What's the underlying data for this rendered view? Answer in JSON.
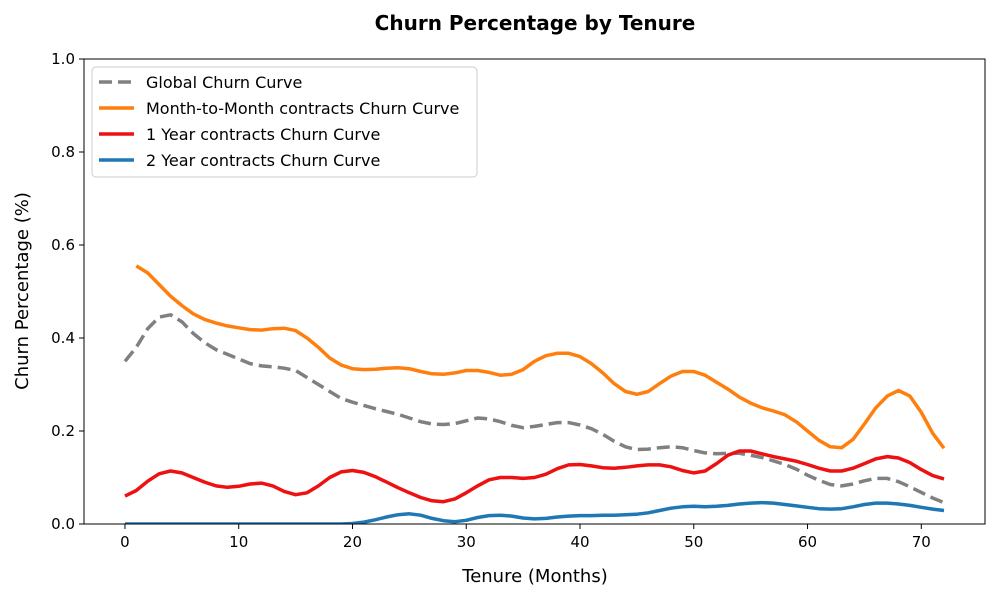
{
  "chart_data": {
    "type": "line",
    "title": "Churn Percentage by Tenure",
    "xlabel": "Tenure (Months)",
    "ylabel": "Churn Percentage (%)",
    "xlim": [
      -3.6,
      75.6
    ],
    "ylim": [
      0,
      1.0
    ],
    "xticks": [
      0,
      10,
      20,
      30,
      40,
      50,
      60,
      70
    ],
    "yticks": [
      0.0,
      0.2,
      0.4,
      0.6,
      0.8,
      1.0
    ],
    "xtick_labels": [
      "0",
      "10",
      "20",
      "30",
      "40",
      "50",
      "60",
      "70"
    ],
    "ytick_labels": [
      "0.0",
      "0.2",
      "0.4",
      "0.6",
      "0.8",
      "1.0"
    ],
    "grid": false,
    "legend_position": "top-left",
    "series": [
      {
        "name": "Global Churn Curve",
        "color": "#808080",
        "dash": true,
        "x": [
          0,
          1,
          2,
          3,
          4,
          5,
          6,
          7,
          8,
          9,
          10,
          11,
          12,
          13,
          14,
          15,
          16,
          17,
          18,
          19,
          20,
          21,
          22,
          23,
          24,
          25,
          26,
          27,
          28,
          29,
          30,
          31,
          32,
          33,
          34,
          35,
          36,
          37,
          38,
          39,
          40,
          41,
          42,
          43,
          44,
          45,
          46,
          47,
          48,
          49,
          50,
          51,
          52,
          53,
          54,
          55,
          56,
          57,
          58,
          59,
          60,
          61,
          62,
          63,
          64,
          65,
          66,
          67,
          68,
          69,
          70,
          71,
          72
        ],
        "values": [
          0.35,
          0.38,
          0.42,
          0.445,
          0.45,
          0.435,
          0.41,
          0.39,
          0.375,
          0.365,
          0.355,
          0.345,
          0.34,
          0.338,
          0.335,
          0.33,
          0.315,
          0.3,
          0.285,
          0.27,
          0.262,
          0.255,
          0.248,
          0.242,
          0.236,
          0.228,
          0.22,
          0.215,
          0.214,
          0.216,
          0.222,
          0.228,
          0.226,
          0.22,
          0.212,
          0.207,
          0.21,
          0.214,
          0.218,
          0.218,
          0.213,
          0.205,
          0.193,
          0.178,
          0.166,
          0.16,
          0.161,
          0.164,
          0.166,
          0.164,
          0.158,
          0.153,
          0.151,
          0.152,
          0.152,
          0.148,
          0.143,
          0.136,
          0.128,
          0.118,
          0.105,
          0.094,
          0.085,
          0.082,
          0.086,
          0.093,
          0.098,
          0.098,
          0.091,
          0.08,
          0.068,
          0.056,
          0.046
        ]
      },
      {
        "name": "Month-to-Month contracts Churn Curve",
        "color": "#ff7f0e",
        "dash": false,
        "x": [
          1,
          2,
          3,
          4,
          5,
          6,
          7,
          8,
          9,
          10,
          11,
          12,
          13,
          14,
          15,
          16,
          17,
          18,
          19,
          20,
          21,
          22,
          23,
          24,
          25,
          26,
          27,
          28,
          29,
          30,
          31,
          32,
          33,
          34,
          35,
          36,
          37,
          38,
          39,
          40,
          41,
          42,
          43,
          44,
          45,
          46,
          47,
          48,
          49,
          50,
          51,
          52,
          53,
          54,
          55,
          56,
          57,
          58,
          59,
          60,
          61,
          62,
          63,
          64,
          65,
          66,
          67,
          68,
          69,
          70,
          71,
          72
        ],
        "values": [
          0.555,
          0.54,
          0.515,
          0.49,
          0.47,
          0.452,
          0.44,
          0.432,
          0.426,
          0.422,
          0.418,
          0.417,
          0.42,
          0.421,
          0.416,
          0.4,
          0.38,
          0.357,
          0.342,
          0.334,
          0.332,
          0.333,
          0.335,
          0.336,
          0.334,
          0.328,
          0.323,
          0.322,
          0.325,
          0.33,
          0.33,
          0.326,
          0.32,
          0.322,
          0.332,
          0.35,
          0.362,
          0.367,
          0.367,
          0.36,
          0.345,
          0.325,
          0.302,
          0.285,
          0.279,
          0.285,
          0.302,
          0.318,
          0.328,
          0.328,
          0.32,
          0.305,
          0.29,
          0.273,
          0.26,
          0.25,
          0.243,
          0.235,
          0.22,
          0.2,
          0.18,
          0.166,
          0.164,
          0.182,
          0.215,
          0.25,
          0.275,
          0.287,
          0.275,
          0.24,
          0.195,
          0.163
        ]
      },
      {
        "name": "1 Year contracts Churn Curve",
        "color": "#ee1111",
        "dash": false,
        "x": [
          0,
          1,
          2,
          3,
          4,
          5,
          6,
          7,
          8,
          9,
          10,
          11,
          12,
          13,
          14,
          15,
          16,
          17,
          18,
          19,
          20,
          21,
          22,
          23,
          24,
          25,
          26,
          27,
          28,
          29,
          30,
          31,
          32,
          33,
          34,
          35,
          36,
          37,
          38,
          39,
          40,
          41,
          42,
          43,
          44,
          45,
          46,
          47,
          48,
          49,
          50,
          51,
          52,
          53,
          54,
          55,
          56,
          57,
          58,
          59,
          60,
          61,
          62,
          63,
          64,
          65,
          66,
          67,
          68,
          69,
          70,
          71,
          72
        ],
        "values": [
          0.06,
          0.072,
          0.092,
          0.108,
          0.114,
          0.11,
          0.1,
          0.09,
          0.082,
          0.079,
          0.081,
          0.086,
          0.088,
          0.082,
          0.07,
          0.063,
          0.067,
          0.082,
          0.1,
          0.112,
          0.115,
          0.111,
          0.102,
          0.09,
          0.078,
          0.067,
          0.057,
          0.05,
          0.048,
          0.054,
          0.067,
          0.082,
          0.095,
          0.1,
          0.1,
          0.098,
          0.1,
          0.107,
          0.119,
          0.127,
          0.128,
          0.125,
          0.121,
          0.12,
          0.122,
          0.125,
          0.127,
          0.127,
          0.123,
          0.115,
          0.11,
          0.114,
          0.13,
          0.148,
          0.157,
          0.157,
          0.151,
          0.145,
          0.14,
          0.135,
          0.128,
          0.12,
          0.114,
          0.114,
          0.12,
          0.13,
          0.14,
          0.145,
          0.142,
          0.132,
          0.117,
          0.104,
          0.097
        ]
      },
      {
        "name": "2 Year contracts Churn Curve",
        "color": "#1f77b4",
        "dash": false,
        "x": [
          0,
          1,
          2,
          3,
          4,
          5,
          6,
          7,
          8,
          9,
          10,
          11,
          12,
          13,
          14,
          15,
          16,
          17,
          18,
          19,
          20,
          21,
          22,
          23,
          24,
          25,
          26,
          27,
          28,
          29,
          30,
          31,
          32,
          33,
          34,
          35,
          36,
          37,
          38,
          39,
          40,
          41,
          42,
          43,
          44,
          45,
          46,
          47,
          48,
          49,
          50,
          51,
          52,
          53,
          54,
          55,
          56,
          57,
          58,
          59,
          60,
          61,
          62,
          63,
          64,
          65,
          66,
          67,
          68,
          69,
          70,
          71,
          72
        ],
        "values": [
          0,
          0,
          0,
          0,
          0,
          0,
          0,
          0,
          0,
          0,
          0,
          0,
          0,
          0,
          0,
          0,
          0,
          0,
          0,
          0,
          0.001,
          0.004,
          0.009,
          0.015,
          0.02,
          0.022,
          0.019,
          0.012,
          0.007,
          0.005,
          0.008,
          0.014,
          0.018,
          0.019,
          0.017,
          0.013,
          0.011,
          0.012,
          0.015,
          0.017,
          0.018,
          0.018,
          0.019,
          0.019,
          0.02,
          0.021,
          0.024,
          0.029,
          0.034,
          0.037,
          0.038,
          0.037,
          0.038,
          0.04,
          0.043,
          0.045,
          0.046,
          0.045,
          0.042,
          0.039,
          0.036,
          0.033,
          0.032,
          0.033,
          0.037,
          0.042,
          0.045,
          0.045,
          0.043,
          0.04,
          0.036,
          0.032,
          0.029
        ]
      }
    ]
  }
}
